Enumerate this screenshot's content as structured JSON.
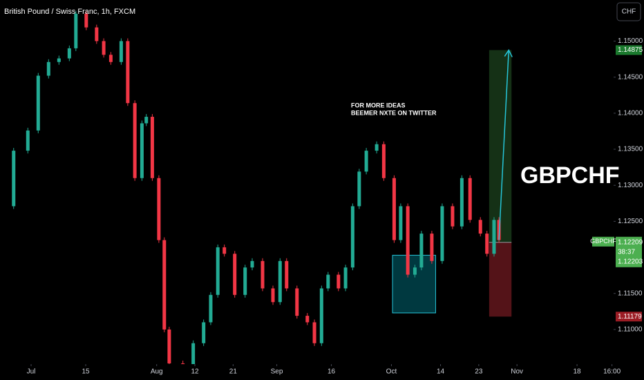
{
  "chart_data": {
    "type": "candlestick",
    "title": "British Pound / Swiss Franc, 1h, FXCM",
    "currency_button": "CHF",
    "symbol": "GBPCHF",
    "annotations": [
      "FOR MORE IDEAS",
      "BEEMER NXTE ON TWITTER"
    ],
    "x": [
      -5.7,
      -3.2,
      -0.6,
      1.3,
      3.2,
      5.1,
      7.0,
      8.2,
      10.1,
      12.0,
      13.3,
      14.6,
      16.5,
      17.7,
      19.0,
      20.3,
      21.1,
      22.2,
      23.4,
      24.4,
      25.3,
      27.8,
      29.7,
      31.6,
      32.9,
      34.2,
      35.4,
      37.3,
      39.2,
      40.5,
      42.4,
      44.3,
      45.6,
      46.8,
      48.7,
      50.6,
      51.9,
      53.2,
      54.4,
      56.3,
      57.6,
      58.9,
      60.1,
      61.4,
      63.3,
      64.6,
      66.5,
      67.7,
      69.0,
      70.3,
      71.5,
      73.4,
      75.3,
      77.2,
      78.9,
      80.4,
      82.3,
      83.5,
      84.8,
      85.7
    ],
    "values": [
      1.1271,
      1.1348,
      1.1376,
      1.1452,
      1.1471,
      1.1476,
      1.149,
      1.1538,
      1.1519,
      1.15,
      1.1481,
      1.1471,
      1.15,
      1.1414,
      1.131,
      1.1386,
      1.1395,
      1.131,
      1.1224,
      1.11,
      1.1053,
      1.1034,
      1.1081,
      1.111,
      1.1148,
      1.1214,
      1.1205,
      1.1148,
      1.1186,
      1.1195,
      1.1157,
      1.1138,
      1.1195,
      1.1157,
      1.1119,
      1.111,
      1.1081,
      1.1157,
      1.1176,
      1.1157,
      1.1186,
      1.1271,
      1.1319,
      1.1348,
      1.1357,
      1.131,
      1.1224,
      1.1271,
      1.1176,
      1.1186,
      1.1233,
      1.1195,
      1.1271,
      1.1243,
      1.131,
      1.1252,
      1.1233,
      1.1205,
      1.1252,
      1.1224
    ],
    "up_color": "#22ab94",
    "down_color": "#f23645",
    "xlim": [
      -5.7,
      106.7
    ],
    "ylim": [
      1.1052,
      1.1557
    ],
    "xticks": [
      {
        "value": 0,
        "label": "Jul"
      },
      {
        "value": 10,
        "label": "15"
      },
      {
        "value": 23,
        "label": "Aug"
      },
      {
        "value": 30,
        "label": "12"
      },
      {
        "value": 37,
        "label": "21"
      },
      {
        "value": 45,
        "label": "Sep"
      },
      {
        "value": 55,
        "label": "16"
      },
      {
        "value": 66,
        "label": "Oct"
      },
      {
        "value": 75,
        "label": "14"
      },
      {
        "value": 82,
        "label": "23"
      },
      {
        "value": 89,
        "label": "Nov"
      },
      {
        "value": 100,
        "label": "18"
      },
      {
        "value": 106.4,
        "label": "16:00"
      }
    ],
    "yticks": [
      {
        "value": 1.15,
        "label": "1.15000"
      },
      {
        "value": 1.145,
        "label": "1.14500"
      },
      {
        "value": 1.14,
        "label": "1.14000"
      },
      {
        "value": 1.135,
        "label": "1.13500"
      },
      {
        "value": 1.13,
        "label": "1.13000"
      },
      {
        "value": 1.125,
        "label": "1.12500"
      },
      {
        "value": 1.115,
        "label": "1.11500"
      },
      {
        "value": 1.11,
        "label": "1.11000"
      }
    ],
    "position": {
      "x": [
        83.9,
        88.0
      ],
      "target": 1.14875,
      "entry": 1.12209,
      "stop": 1.11179
    },
    "last_price": 1.12203,
    "countdown": "38:37",
    "zone": {
      "x": [
        66.2,
        74.1
      ],
      "top": 1.1203,
      "bottom": 1.1123
    }
  }
}
